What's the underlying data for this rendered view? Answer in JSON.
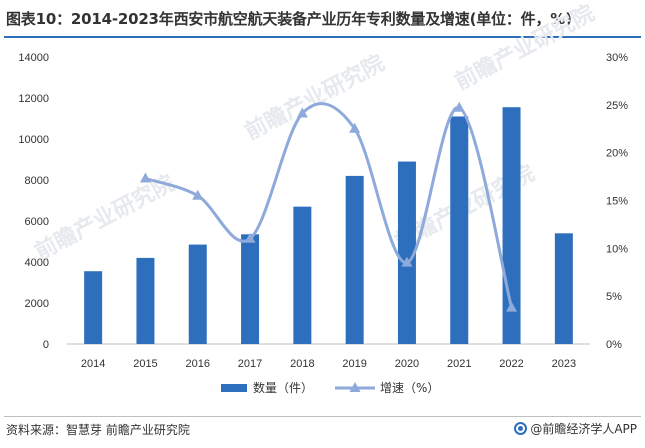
{
  "title": "图表10：2014-2023年西安市航空航天装备产业历年专利数量及增速(单位：件，%)",
  "source": "资料来源：智慧芽 前瞻产业研究院",
  "brand": "@前瞻经济学人APP",
  "watermark": "前瞻产业研究院",
  "colors": {
    "bar": "#2e6fbd",
    "line": "#8eaadb",
    "axis_text": "#333333",
    "title_rule": "#2e6fbd"
  },
  "chart_data": {
    "type": "bar",
    "categories": [
      "2014",
      "2015",
      "2016",
      "2017",
      "2018",
      "2019",
      "2020",
      "2021",
      "2022",
      "2023"
    ],
    "series": [
      {
        "name": "数量（件）",
        "type": "bar",
        "axis": "left",
        "values": [
          3550,
          4200,
          4850,
          5350,
          6700,
          8200,
          8900,
          11100,
          11550,
          5400
        ]
      },
      {
        "name": "增速（%）",
        "type": "line",
        "axis": "right",
        "values": [
          null,
          17.3,
          15.5,
          11.0,
          24.1,
          22.5,
          8.5,
          24.7,
          3.8,
          null
        ]
      }
    ],
    "y_left": {
      "min": 0,
      "max": 14000,
      "ticks": [
        0,
        2000,
        4000,
        6000,
        8000,
        10000,
        12000,
        14000
      ]
    },
    "y_right": {
      "min": 0,
      "max": 30,
      "ticks": [
        "0%",
        "5%",
        "10%",
        "15%",
        "20%",
        "25%",
        "30%"
      ]
    },
    "grid": false,
    "legend_position": "bottom"
  }
}
